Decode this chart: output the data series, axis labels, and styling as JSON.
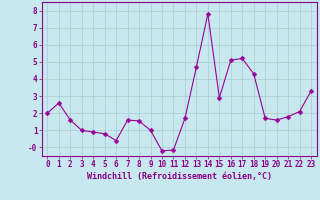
{
  "x": [
    0,
    1,
    2,
    3,
    4,
    5,
    6,
    7,
    8,
    9,
    10,
    11,
    12,
    13,
    14,
    15,
    16,
    17,
    18,
    19,
    20,
    21,
    22,
    23
  ],
  "y": [
    2.0,
    2.6,
    1.6,
    1.0,
    0.9,
    0.8,
    0.4,
    1.6,
    1.55,
    1.0,
    -0.2,
    -0.15,
    1.7,
    4.7,
    7.8,
    2.9,
    5.1,
    5.2,
    4.3,
    1.7,
    1.6,
    1.8,
    2.1,
    3.3
  ],
  "line_color": "#990099",
  "marker": "D",
  "marker_size": 2.5,
  "bg_color": "#c8e8f0",
  "grid_color": "#aacccc",
  "xlabel": "Windchill (Refroidissement éolien,°C)",
  "ylim": [
    -0.5,
    8.5
  ],
  "xlim": [
    -0.5,
    23.5
  ],
  "yticks": [
    0,
    1,
    2,
    3,
    4,
    5,
    6,
    7,
    8
  ],
  "ytick_labels": [
    "-0",
    "1",
    "2",
    "3",
    "4",
    "5",
    "6",
    "7",
    "8"
  ],
  "xticks": [
    0,
    1,
    2,
    3,
    4,
    5,
    6,
    7,
    8,
    9,
    10,
    11,
    12,
    13,
    14,
    15,
    16,
    17,
    18,
    19,
    20,
    21,
    22,
    23
  ],
  "label_color": "#880088",
  "tick_color": "#880088",
  "label_fontsize": 6.0,
  "tick_fontsize": 5.5
}
